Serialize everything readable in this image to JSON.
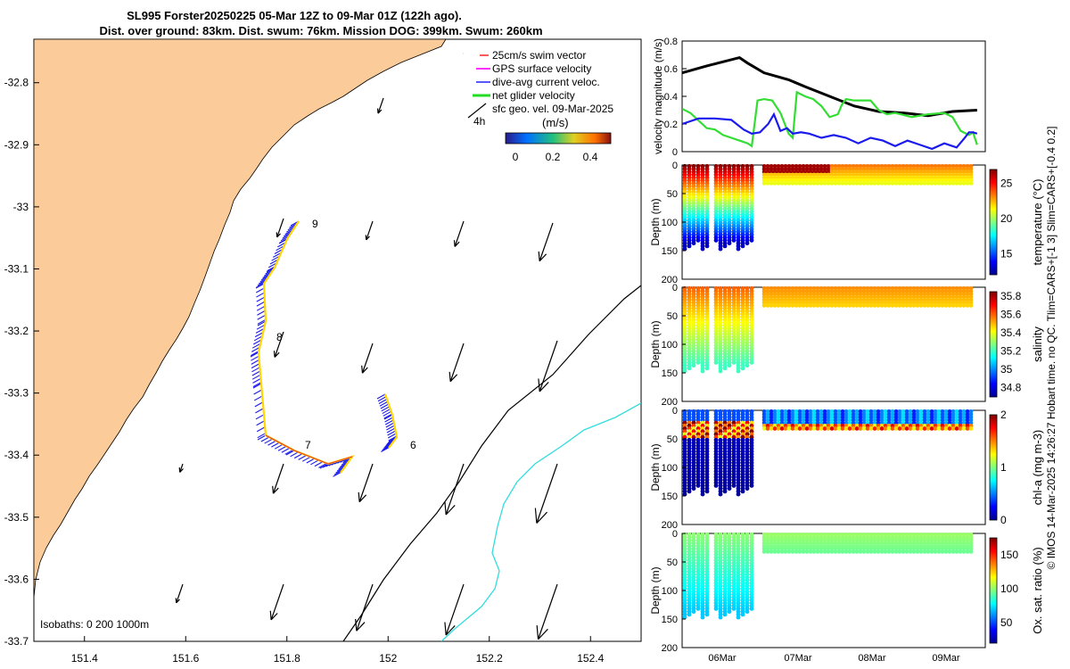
{
  "title": {
    "line1": "SL995 Forster20250225 05-Mar 12Z to 09-Mar 01Z (122h ago).",
    "line2": "Dist. over ground: 83km. Dist. swum: 76km. Mission DOG: 399km. Swum: 260km"
  },
  "map": {
    "x_ticks": [
      "151.4",
      "151.6",
      "151.8",
      "152",
      "152.2",
      "152.4"
    ],
    "y_ticks": [
      "-32.8",
      "-32.9",
      "-33",
      "-33.1",
      "-33.2",
      "-33.3",
      "-33.4",
      "-33.5",
      "-33.6",
      "-33.7"
    ],
    "xlim": [
      151.3,
      152.5
    ],
    "ylim": [
      -33.7,
      -32.73
    ],
    "isobaths_label": "Isobaths: 0   200  1000m",
    "legend": [
      "25cm/s swim vector",
      "GPS surface velocity",
      "dive-avg current veloc.",
      "net glider velocity",
      "sfc geo. vel. 09-Mar-2025"
    ],
    "legend_extra": "4h",
    "colorbar_title": "(m/s)",
    "colorbar_ticks": [
      "0",
      "0.2",
      "0.4"
    ],
    "day_markers": [
      "9",
      "8",
      "7",
      "6"
    ],
    "colors": {
      "land": "#fbcc9a",
      "isobath_200": "#000000",
      "isobath_1000": "#33dddd",
      "track": "#ffd700"
    }
  },
  "chart_data": [
    {
      "type": "line",
      "title": "velocity magnitude",
      "ylabel": "velocity magnitude (m/s)",
      "ylim": [
        0,
        0.8
      ],
      "y_ticks": [
        "0",
        "0.2",
        "0.4",
        "0.6",
        "0.8"
      ],
      "xlim_days": [
        5.5,
        9.2
      ],
      "series": [
        {
          "name": "net glider velocity",
          "color": "#000000",
          "x": [
            5.5,
            5.8,
            6.2,
            6.3,
            6.5,
            6.8,
            7.0,
            7.3,
            7.6,
            7.9,
            8.2,
            8.5,
            8.8,
            9.1
          ],
          "y": [
            0.57,
            0.62,
            0.68,
            0.64,
            0.57,
            0.52,
            0.47,
            0.4,
            0.33,
            0.29,
            0.28,
            0.26,
            0.29,
            0.3
          ]
        },
        {
          "name": "dive-avg current veloc.",
          "color": "#33dd33",
          "x": [
            5.5,
            5.6,
            5.8,
            5.9,
            6.0,
            6.1,
            6.2,
            6.3,
            6.35,
            6.42,
            6.5,
            6.6,
            6.7,
            6.8,
            6.85,
            6.9,
            7.0,
            7.1,
            7.2,
            7.3,
            7.4,
            7.45,
            7.5,
            7.6,
            7.8,
            7.9,
            8.0,
            8.1,
            8.3,
            8.5,
            8.7,
            8.8,
            8.9,
            9.0,
            9.05,
            9.1
          ],
          "y": [
            0.31,
            0.28,
            0.17,
            0.16,
            0.12,
            0.1,
            0.08,
            0.06,
            0.04,
            0.37,
            0.38,
            0.37,
            0.28,
            0.13,
            0.1,
            0.43,
            0.4,
            0.38,
            0.33,
            0.25,
            0.27,
            0.34,
            0.38,
            0.37,
            0.37,
            0.3,
            0.27,
            0.28,
            0.25,
            0.27,
            0.28,
            0.25,
            0.15,
            0.12,
            0.14,
            0.05
          ]
        },
        {
          "name": "GPS surface velocity",
          "color": "#1a1aee",
          "x": [
            5.5,
            5.7,
            5.9,
            6.1,
            6.25,
            6.35,
            6.45,
            6.55,
            6.62,
            6.7,
            6.78,
            6.85,
            6.95,
            7.05,
            7.2,
            7.35,
            7.5,
            7.65,
            7.8,
            7.95,
            8.1,
            8.25,
            8.4,
            8.55,
            8.7,
            8.85,
            8.95,
            9.0,
            9.05,
            9.1
          ],
          "y": [
            0.2,
            0.24,
            0.24,
            0.23,
            0.16,
            0.13,
            0.14,
            0.2,
            0.27,
            0.15,
            0.17,
            0.13,
            0.14,
            0.13,
            0.1,
            0.12,
            0.1,
            0.06,
            0.1,
            0.08,
            0.04,
            0.08,
            0.05,
            0.02,
            0.06,
            0.03,
            0.1,
            0.14,
            0.14,
            0.13
          ]
        }
      ]
    },
    {
      "type": "heatmap",
      "name": "temperature",
      "cb_label": "temperature (°C)",
      "cb_ticks": [
        "15",
        "20",
        "25"
      ],
      "cb_range": [
        12,
        27
      ],
      "ylabel": "Depth (m)",
      "y_ticks": [
        "0",
        "50",
        "100",
        "150",
        "200"
      ],
      "ylim": [
        0,
        200
      ],
      "surface": 27,
      "deep": 13,
      "surface_later": 23.5
    },
    {
      "type": "heatmap",
      "name": "salinity",
      "cb_label": "salinity",
      "cb_ticks": [
        "34.8",
        "35",
        "35.2",
        "35.4",
        "35.6",
        "35.8"
      ],
      "cb_range": [
        34.7,
        35.85
      ],
      "ylabel": "Depth (m)",
      "y_ticks": [
        "0",
        "50",
        "100",
        "150",
        "200"
      ],
      "ylim": [
        0,
        200
      ],
      "surface": 35.6,
      "deep": 35.2,
      "surface_later": 35.55
    },
    {
      "type": "heatmap",
      "name": "chl-a",
      "cb_label": "chl-a (mg m-3)",
      "cb_ticks": [
        "0",
        "1",
        "2"
      ],
      "cb_range": [
        0,
        2
      ],
      "ylabel": "Depth (m)",
      "y_ticks": [
        "0",
        "50",
        "100",
        "150",
        "200"
      ],
      "ylim": [
        0,
        200
      ],
      "surface": 0.4,
      "deep": 0.05,
      "surface_later": 0.45
    },
    {
      "type": "heatmap",
      "name": "oxygen",
      "cb_label": "Ox. sat. ratio (%)",
      "cb_ticks": [
        "50",
        "100",
        "150"
      ],
      "cb_range": [
        20,
        175
      ],
      "ylabel": "Depth (m)",
      "y_ticks": [
        "0",
        "50",
        "100",
        "150",
        "200"
      ],
      "ylim": [
        0,
        200
      ],
      "surface": 100,
      "deep": 70,
      "surface_later": 102
    }
  ],
  "time_axis": {
    "labels": [
      "06Mar",
      "07Mar",
      "08Mar",
      "09Mar"
    ]
  },
  "side_note": "© IMOS 14-Mar-2025 14:26:27 Hobart time. no QC. Tlim=CARS+[-1 3] Slim=CARS+[-0.4 0.2]"
}
